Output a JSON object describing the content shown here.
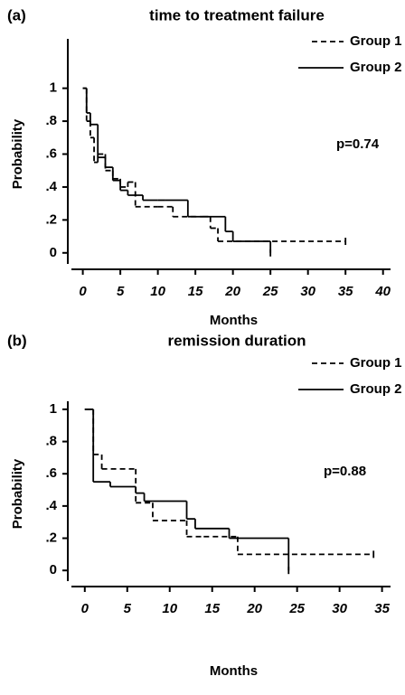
{
  "chart_data": [
    {
      "type": "step",
      "panel_label": "(a)",
      "title": "time to treatment failure",
      "x_label": "Months",
      "y_label": "Probability",
      "annotation": "p=0.74",
      "xlim": [
        -2,
        41
      ],
      "ylim": [
        -0.1,
        1.3
      ],
      "xticks": [
        0,
        5,
        10,
        15,
        20,
        25,
        30,
        35,
        40
      ],
      "yticks": [
        0,
        {
          "value": 0.2,
          "label": ".2"
        },
        {
          "value": 0.4,
          "label": ".4"
        },
        {
          "value": 0.6,
          "label": ".6"
        },
        {
          "value": 0.8,
          "label": ".8"
        },
        1
      ],
      "series": [
        {
          "name": "Group 1",
          "color": "#000000",
          "line_style": "dashed",
          "x": [
            0,
            0.5,
            1,
            1.5,
            2,
            3,
            4,
            5,
            6,
            7,
            10,
            12,
            16,
            17,
            18,
            35
          ],
          "values": [
            1,
            0.8,
            0.7,
            0.55,
            0.6,
            0.5,
            0.45,
            0.4,
            0.43,
            0.28,
            0.28,
            0.22,
            0.22,
            0.15,
            0.07,
            0.07
          ]
        },
        {
          "name": "Group 2",
          "color": "#000000",
          "line_style": "solid",
          "x": [
            0,
            0.5,
            1,
            2,
            3,
            4,
            5,
            6,
            8,
            10,
            11,
            14,
            15,
            19,
            20,
            21,
            25
          ],
          "values": [
            1,
            0.85,
            0.78,
            0.58,
            0.52,
            0.44,
            0.38,
            0.35,
            0.32,
            0.32,
            0.32,
            0.22,
            0.22,
            0.13,
            0.07,
            0.07,
            0
          ]
        }
      ]
    },
    {
      "type": "step",
      "panel_label": "(b)",
      "title": "remission duration",
      "x_label": "Months",
      "y_label": "Probability",
      "annotation": "p=0.88",
      "xlim": [
        -2,
        36
      ],
      "ylim": [
        -0.1,
        1.05
      ],
      "xticks": [
        0,
        5,
        10,
        15,
        20,
        25,
        30,
        35
      ],
      "yticks": [
        0,
        {
          "value": 0.2,
          "label": ".2"
        },
        {
          "value": 0.4,
          "label": ".4"
        },
        {
          "value": 0.6,
          "label": ".6"
        },
        {
          "value": 0.8,
          "label": ".8"
        },
        1
      ],
      "series": [
        {
          "name": "Group 1",
          "color": "#000000",
          "line_style": "dashed",
          "x": [
            0,
            1,
            2,
            6,
            8,
            12,
            14,
            18,
            34
          ],
          "values": [
            1,
            0.72,
            0.63,
            0.42,
            0.31,
            0.21,
            0.21,
            0.1,
            0.1
          ]
        },
        {
          "name": "Group 2",
          "color": "#000000",
          "line_style": "solid",
          "x": [
            0,
            1,
            3,
            6,
            7,
            12,
            13,
            17,
            24,
            24
          ],
          "values": [
            1,
            0.55,
            0.52,
            0.48,
            0.43,
            0.32,
            0.26,
            0.2,
            0.2,
            0
          ]
        }
      ]
    }
  ]
}
